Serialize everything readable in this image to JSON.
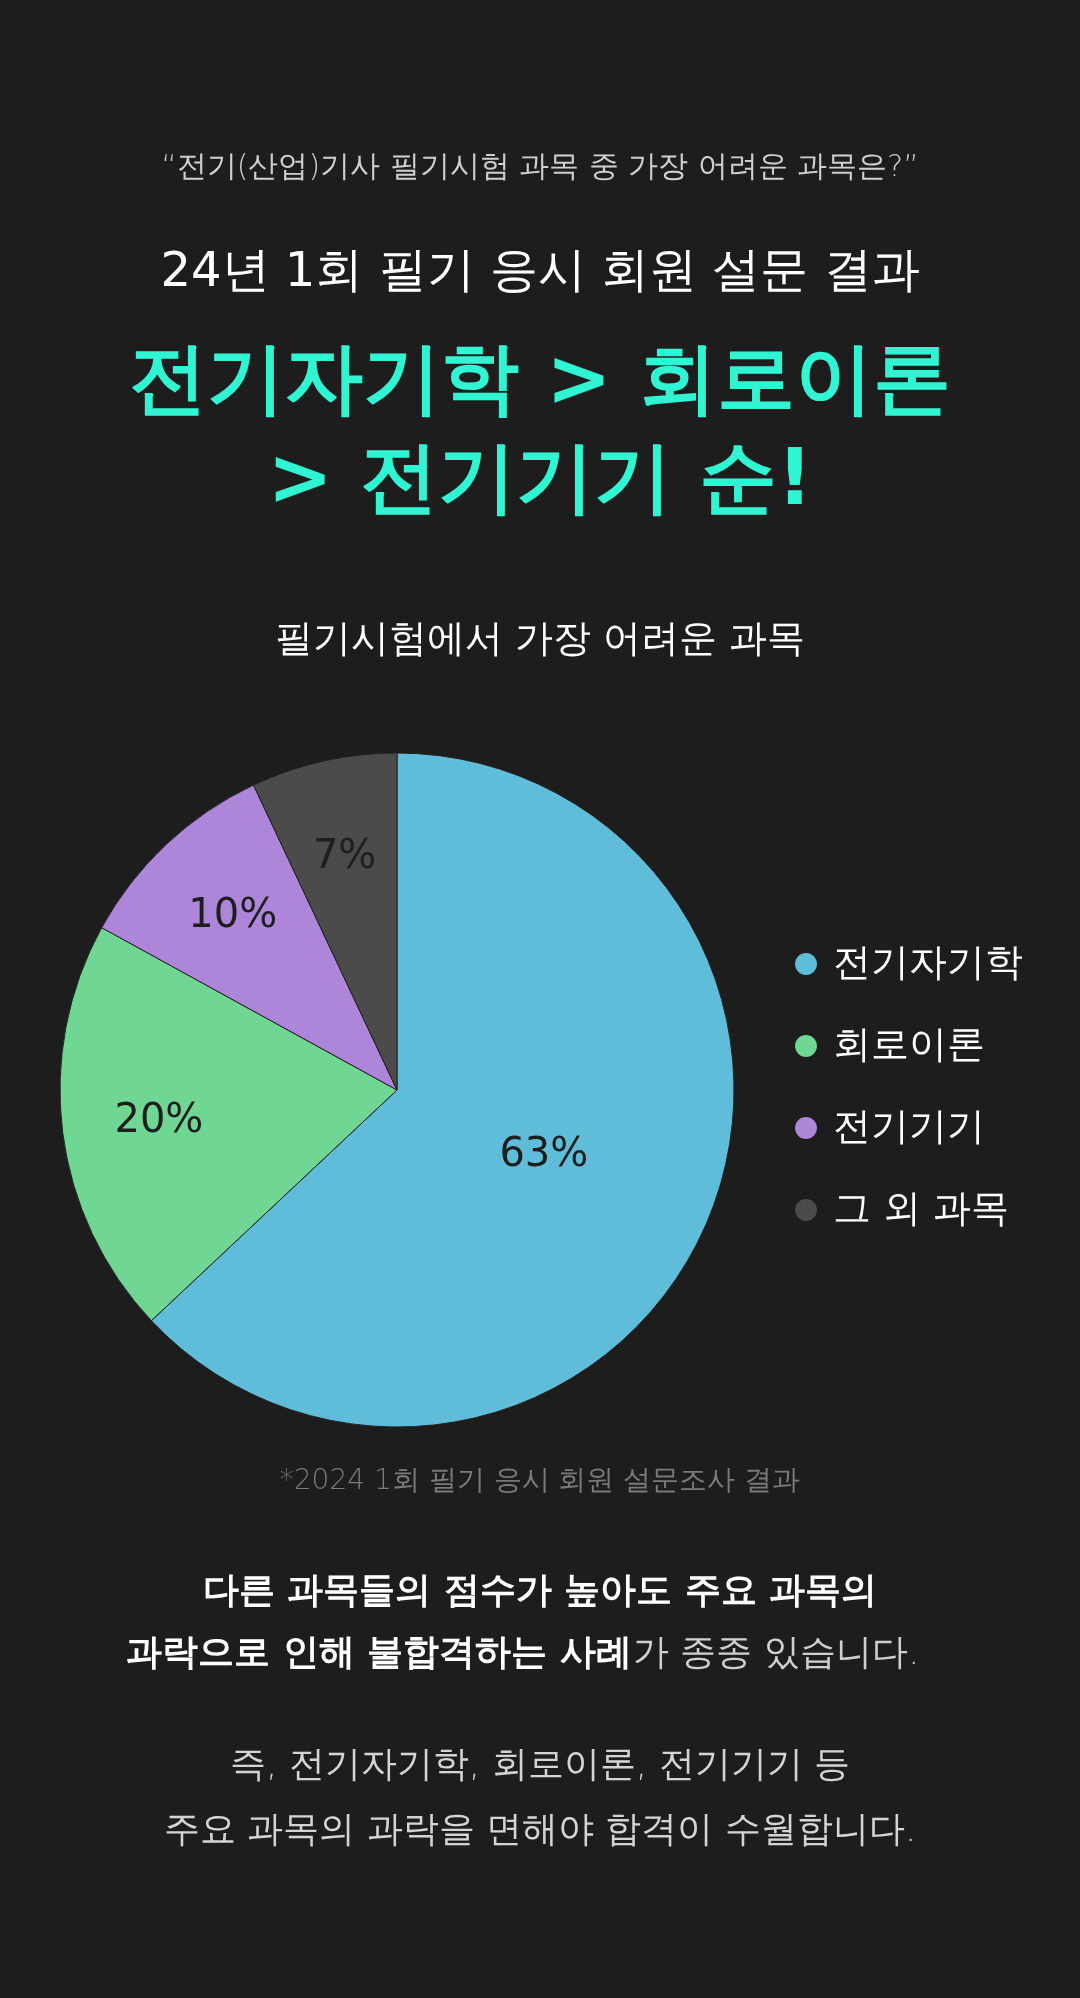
{
  "chart_data": {
    "type": "pie",
    "title": "필기시험에서 가장 어려운 과목",
    "categories": [
      "전기자기학",
      "회로이론",
      "전기기기",
      "그 외 과목"
    ],
    "values": [
      63,
      20,
      10,
      7
    ],
    "colors": [
      "#5fbdd9",
      "#70d693",
      "#ae86d9",
      "#4b4b4b"
    ],
    "value_labels": [
      "63%",
      "20%",
      "10%",
      "7%"
    ],
    "legend": "right",
    "annotations": [
      "“전기(산업)기사 필기시험 과목 중 가장 어려운 과목은?”",
      "24년 1회 필기 응시 회원 설문 결과",
      "전기자기학 > 회로이론",
      "> 전기기기 순!",
      "*2024 1회 필기 응시 회원 설문조사 결과",
      "다른 과목들의 점수가 높아도 주요 과목의",
      "과락으로 인해 불합격하는 사례",
      "가 종종 있습니다.",
      "즉, 전기자기학, 회로이론, 전기기기 등",
      "주요 과목의 과락을 면해야 합격이 수월합니다."
    ]
  }
}
